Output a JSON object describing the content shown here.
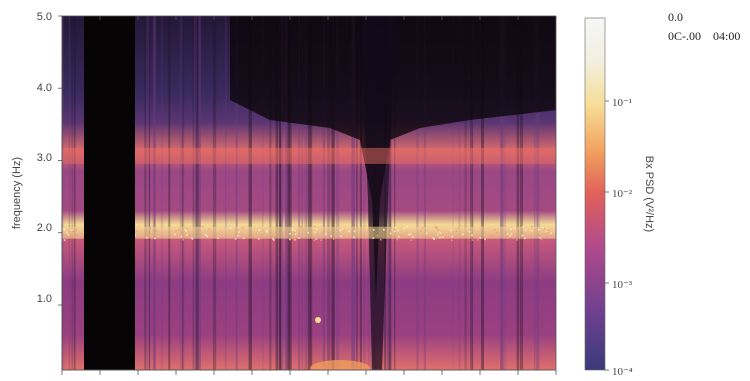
{
  "chart_data": {
    "type": "heatmap",
    "title": "",
    "xlabel": "",
    "ylabel": "frequency (Hz)",
    "ylim": [
      0.1,
      5.0
    ],
    "y_ticks": [
      "5.0",
      "4.0",
      "3.0",
      "2.0",
      "1.0"
    ],
    "y_tick_values": [
      5.0,
      4.0,
      3.0,
      2.0,
      1.0
    ],
    "x_tick_labels": [],
    "colorbar": {
      "label": "Bx PSD (V²/Hz)",
      "scale": "log",
      "range": [
        0.0001,
        0.5
      ],
      "ticks": [
        "10⁻¹",
        "10⁻²",
        "10⁻³",
        "10⁻⁴"
      ],
      "tick_values": [
        0.1,
        0.01,
        0.001,
        0.0001
      ]
    },
    "colors": {
      "black": "#0a0508",
      "dark_purple": "#241838",
      "purple": "#4a3a78",
      "magenta": "#8e3f86",
      "pink": "#c45a84",
      "orange": "#ec8a62",
      "yellow": "#f6dd96",
      "white": "#f4f4f4"
    },
    "bands": [
      {
        "name": "",
        "center_hz": 2.0,
        "strength": "high"
      },
      {
        "name": "",
        "center_hz": 3.0,
        "strength": "medium"
      }
    ]
  },
  "corner_note": {
    "line1": "0.0",
    "line2": "0C-.00    04:00"
  }
}
